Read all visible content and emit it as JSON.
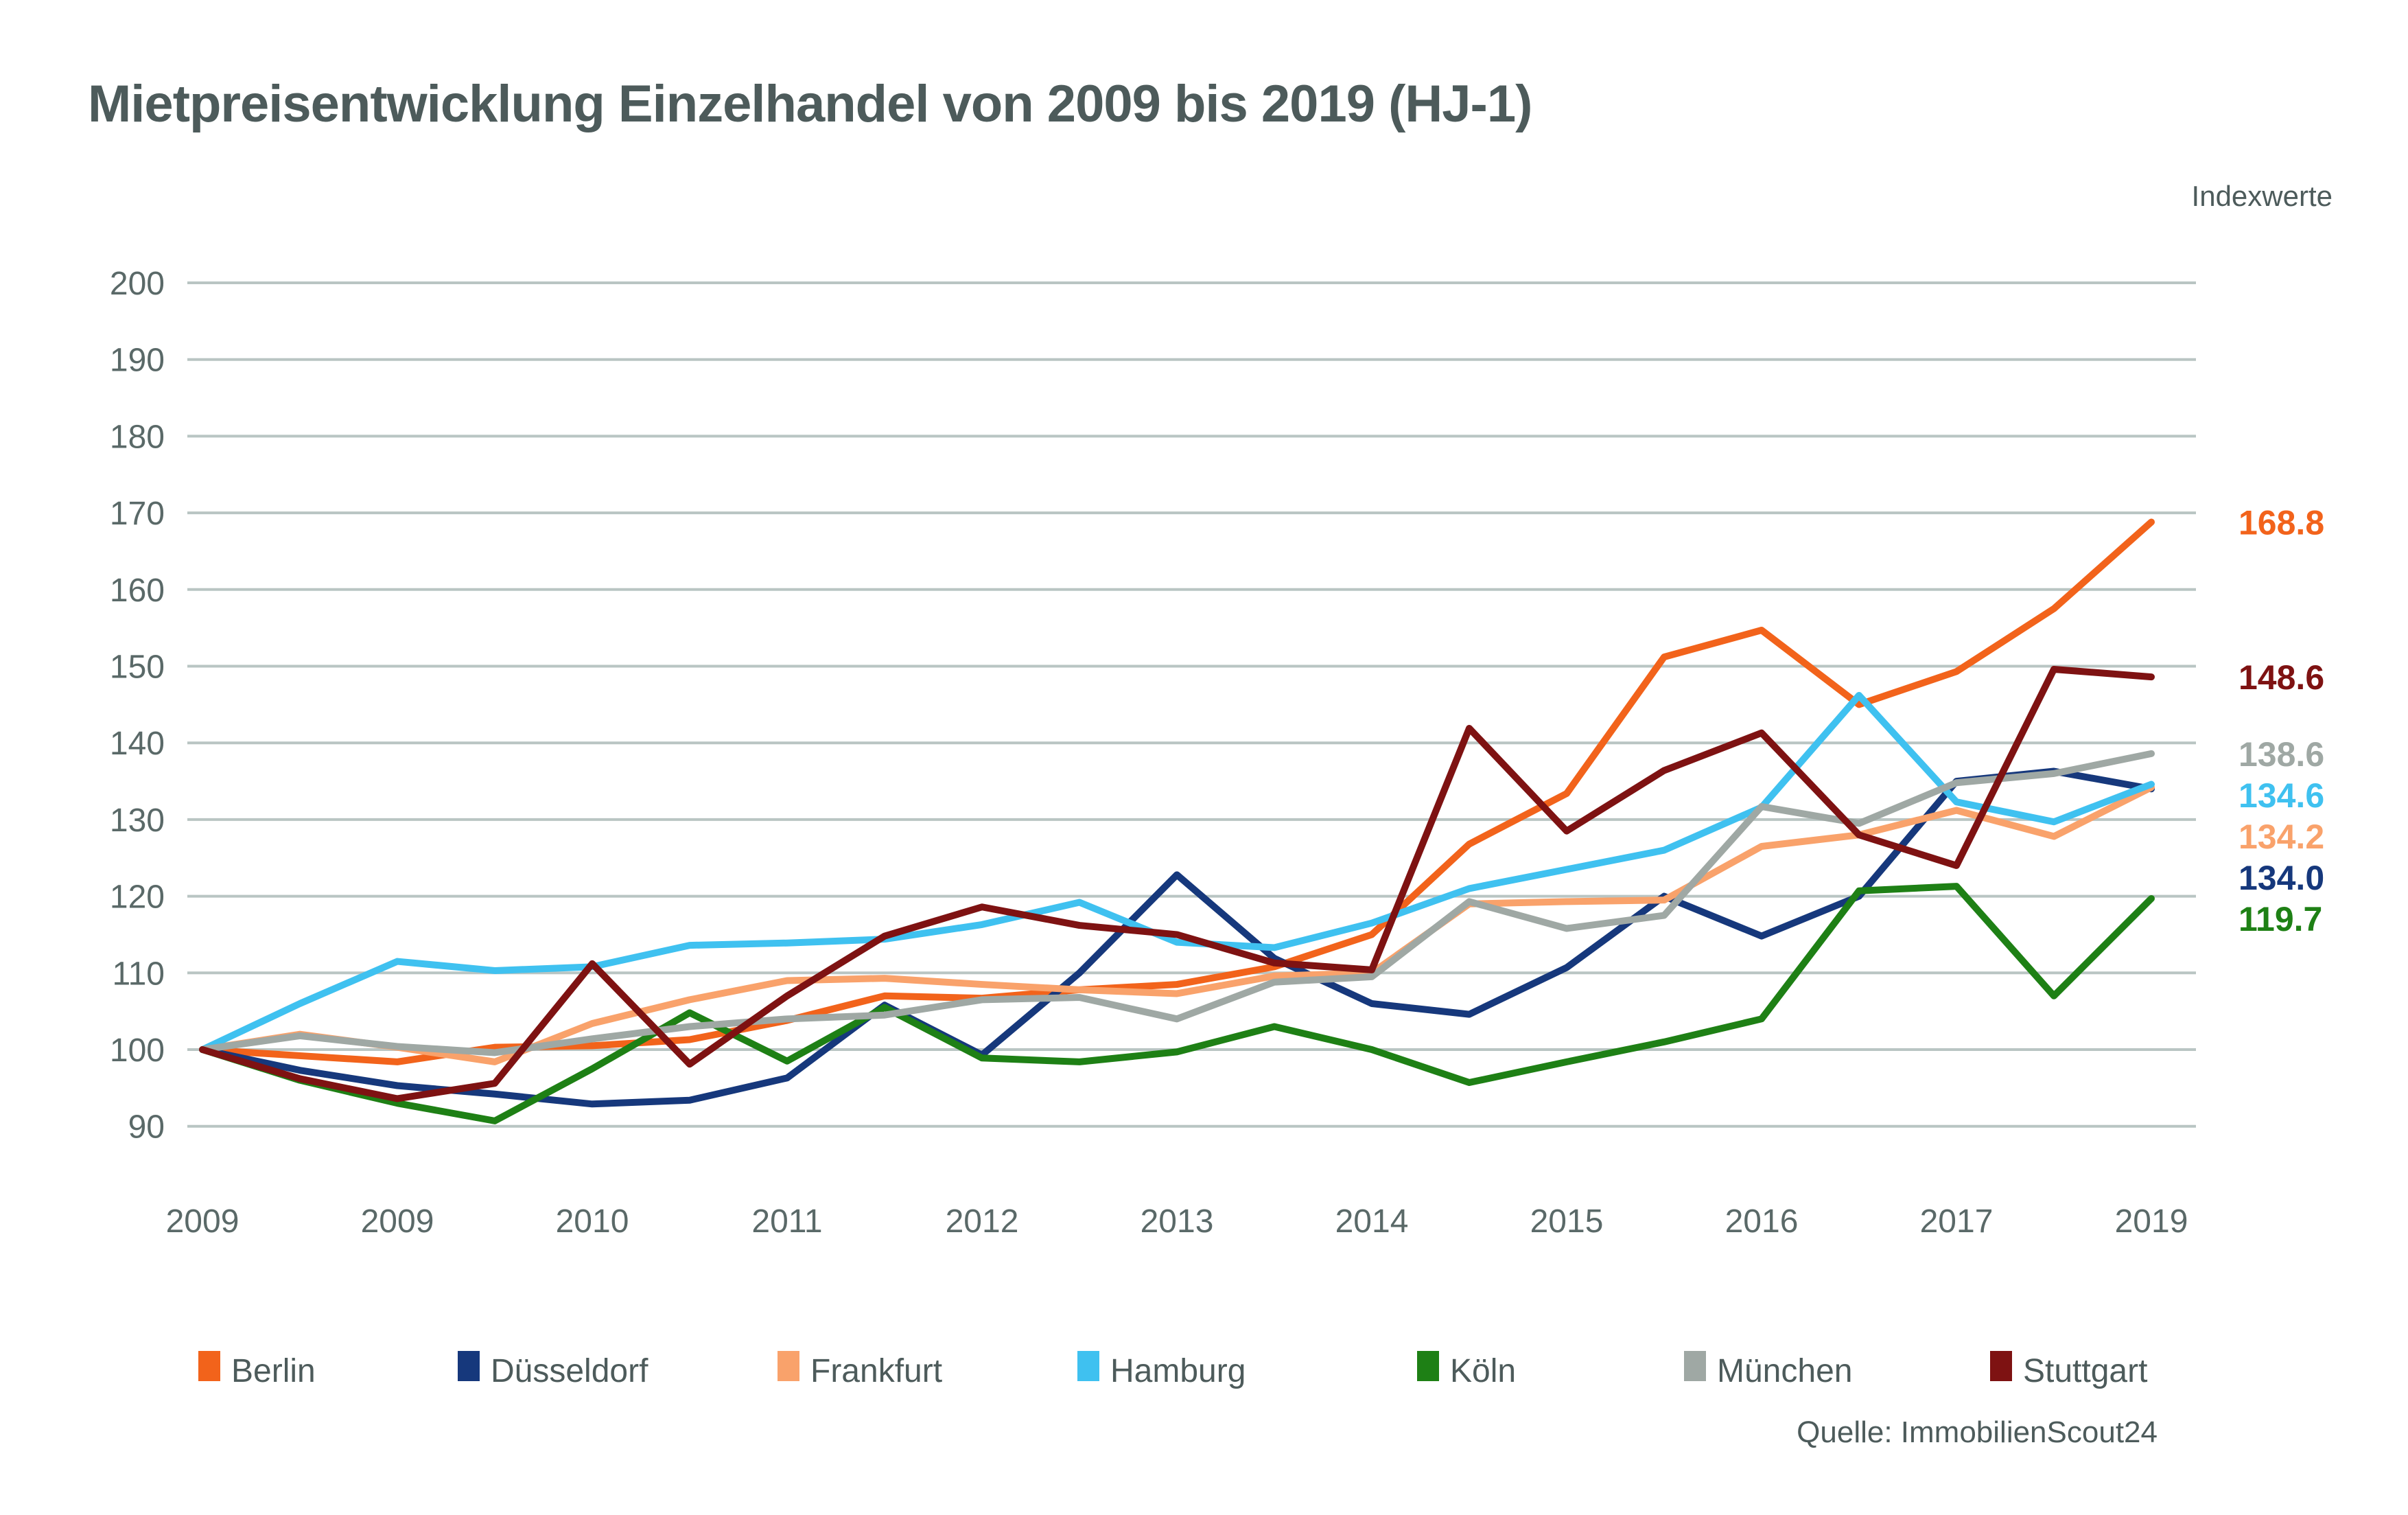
{
  "header": {
    "title": "Mietpreisentwicklung Einzelhandel von 2009 bis 2019 (HJ-1)",
    "unit_label": "Indexwerte"
  },
  "footer": {
    "source": "Quelle: ImmobilienScout24"
  },
  "chart_data": {
    "type": "line",
    "title": "Mietpreisentwicklung Einzelhandel von 2009 bis 2019 (HJ-1)",
    "ylabel": "Indexwerte",
    "ylim": [
      90,
      200
    ],
    "y_ticks": [
      200,
      190,
      180,
      170,
      160,
      150,
      140,
      130,
      120,
      110,
      100,
      90
    ],
    "grid": "horizontal",
    "legend_position": "bottom",
    "x_tick_labels": [
      "2009",
      "2009",
      "2010",
      "2011",
      "2012",
      "2013",
      "2014",
      "2015",
      "2016",
      "2017",
      "2019"
    ],
    "points_per_series": 21,
    "x_note": "half-year steps 2009 HJ-1 to 2019 HJ-1; axis labels sit at every second point",
    "series": [
      {
        "name": "Berlin",
        "color": "#f2631b",
        "end_label": "168.8",
        "values": [
          100,
          99.2,
          98.4,
          100.3,
          100.5,
          101.3,
          103.8,
          107.0,
          106.7,
          107.8,
          108.5,
          110.8,
          115.0,
          126.8,
          133.4,
          151.2,
          154.7,
          145.0,
          149.3,
          157.5,
          168.8
        ]
      },
      {
        "name": "Düsseldorf",
        "color": "#16387c",
        "end_label": "134.0",
        "values": [
          100,
          97.3,
          95.3,
          94.2,
          92.9,
          93.4,
          96.3,
          105.8,
          99.3,
          110.0,
          122.8,
          111.9,
          106.0,
          104.6,
          110.7,
          120.0,
          114.8,
          120.0,
          135.0,
          136.3,
          134.0
        ]
      },
      {
        "name": "Frankfurt",
        "color": "#f9a26b",
        "end_label": "134.2",
        "values": [
          100,
          102.0,
          100.3,
          98.4,
          103.4,
          106.5,
          109.0,
          109.3,
          108.5,
          107.8,
          107.3,
          109.6,
          110.0,
          119.0,
          119.3,
          119.5,
          126.5,
          128.0,
          131.2,
          127.8,
          134.2
        ]
      },
      {
        "name": "Hamburg",
        "color": "#3fc1f0",
        "end_label": "134.6",
        "values": [
          100,
          106.0,
          111.5,
          110.3,
          110.8,
          113.6,
          113.9,
          114.4,
          116.3,
          119.2,
          114.0,
          113.3,
          116.5,
          121.0,
          123.5,
          126.0,
          131.6,
          146.2,
          132.3,
          129.7,
          134.6
        ]
      },
      {
        "name": "Köln",
        "color": "#1e8015",
        "end_label": "119.7",
        "values": [
          100,
          96.0,
          93.0,
          90.7,
          97.5,
          104.8,
          98.5,
          105.5,
          98.9,
          98.4,
          99.7,
          103.0,
          100.0,
          95.7,
          98.4,
          101.0,
          104.0,
          120.7,
          121.3,
          107.0,
          119.7
        ]
      },
      {
        "name": "München",
        "color": "#9fa8a4",
        "end_label": "138.6",
        "values": [
          100,
          101.8,
          100.4,
          99.6,
          101.4,
          103.0,
          104.0,
          104.5,
          106.5,
          106.8,
          104.0,
          108.8,
          109.5,
          119.3,
          115.8,
          117.5,
          131.7,
          129.5,
          134.8,
          136.0,
          138.6
        ]
      },
      {
        "name": "Stuttgart",
        "color": "#7e1212",
        "end_label": "148.6",
        "values": [
          100,
          96.2,
          93.6,
          95.6,
          111.2,
          98.1,
          107.0,
          114.8,
          118.6,
          116.2,
          115.0,
          111.3,
          110.4,
          141.9,
          128.5,
          136.4,
          141.3,
          128.0,
          124.0,
          149.6,
          148.6
        ]
      }
    ]
  }
}
